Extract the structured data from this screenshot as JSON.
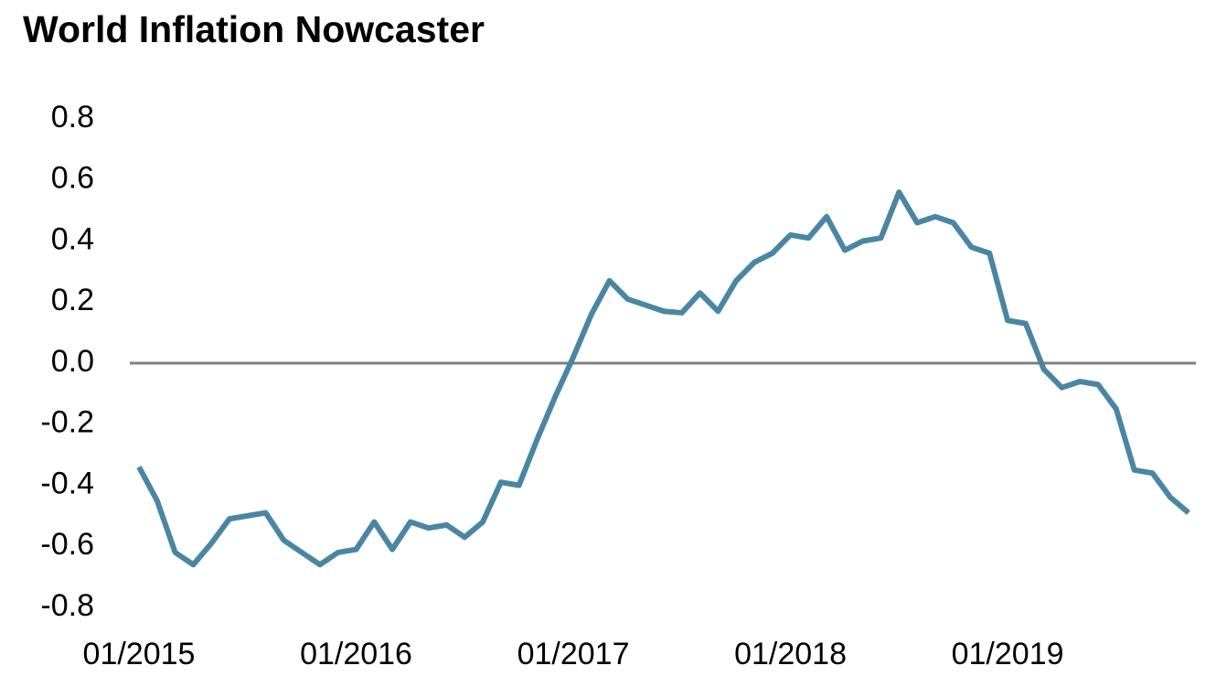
{
  "chart_data": {
    "type": "line",
    "title": "World Inflation Nowcaster",
    "categories": [
      "01/2015",
      null,
      null,
      null,
      null,
      null,
      null,
      null,
      null,
      null,
      null,
      null,
      "01/2016",
      null,
      null,
      null,
      null,
      null,
      null,
      null,
      null,
      null,
      null,
      null,
      "01/2017",
      null,
      null,
      null,
      null,
      null,
      null,
      null,
      null,
      null,
      null,
      null,
      "01/2018",
      null,
      null,
      null,
      null,
      null,
      null,
      null,
      null,
      null,
      null,
      null,
      "01/2019",
      null,
      null,
      null,
      null,
      null,
      null,
      null,
      null,
      null,
      null
    ],
    "series": [
      {
        "name": "World Inflation Nowcaster",
        "color": "#4a86a3",
        "values": [
          -0.34,
          -0.45,
          -0.62,
          -0.66,
          -0.59,
          -0.51,
          -0.5,
          -0.49,
          -0.58,
          -0.62,
          -0.66,
          -0.62,
          -0.61,
          -0.52,
          -0.61,
          -0.52,
          -0.54,
          -0.53,
          -0.57,
          -0.52,
          -0.39,
          -0.4,
          -0.25,
          -0.11,
          0.02,
          0.16,
          0.27,
          0.21,
          0.19,
          0.17,
          0.165,
          0.23,
          0.17,
          0.27,
          0.33,
          0.36,
          0.42,
          0.41,
          0.48,
          0.37,
          0.4,
          0.41,
          0.56,
          0.46,
          0.48,
          0.46,
          0.38,
          0.36,
          0.14,
          0.13,
          -0.02,
          -0.08,
          -0.06,
          -0.07,
          -0.15,
          -0.35,
          -0.36,
          -0.44,
          -0.49
        ]
      }
    ],
    "ylim": [
      -0.8,
      0.8
    ],
    "yticks": [
      0.8,
      0.6,
      0.4,
      0.2,
      {
        "value": 0,
        "label": "0.0"
      },
      -0.2,
      -0.4,
      -0.6,
      -0.8
    ],
    "grid": false
  }
}
